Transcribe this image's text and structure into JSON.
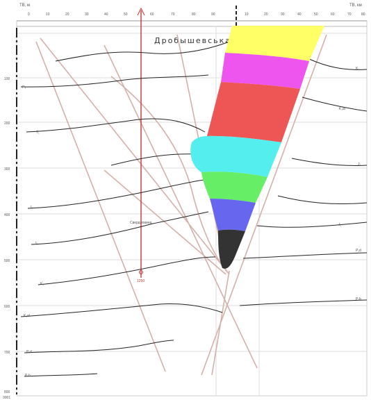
{
  "section": {
    "title": "Дробышевська",
    "axis_units": "ТВ, м",
    "well_label": "Свердловина",
    "well_id": "1250",
    "bottom_axis": "0001"
  },
  "top_scale": {
    "ticks_left": [
      "0",
      "10",
      "20",
      "30",
      "40",
      "50",
      "60",
      "70",
      "80",
      "90"
    ],
    "ticks_right": [
      "10",
      "20",
      "30",
      "40",
      "50",
      "60",
      "70",
      "80"
    ],
    "left_label": "ТВ, м",
    "right_label": "ТВ, км"
  },
  "depth_scale": {
    "ticks": [
      "100",
      "200",
      "300",
      "400",
      "500",
      "600",
      "700",
      "800"
    ]
  },
  "horizon_labels_left": [
    "P₁",
    "T₁",
    "J₁",
    "J₂",
    "K₁",
    "K₁al",
    "P₁d",
    "P₁b"
  ],
  "horizon_labels_right": [
    "K₁",
    "K₁al",
    "J₂",
    "J₁",
    "P₁d",
    "P₁b"
  ],
  "salt_dome": {
    "layers": [
      {
        "name": "layer-yellow",
        "color": "#ffff66"
      },
      {
        "name": "layer-magenta",
        "color": "#ee55ee"
      },
      {
        "name": "layer-red",
        "color": "#ee5555"
      },
      {
        "name": "layer-cyan",
        "color": "#55eeee"
      },
      {
        "name": "layer-green",
        "color": "#66ee66"
      },
      {
        "name": "layer-blue",
        "color": "#6666ee"
      },
      {
        "name": "layer-black",
        "color": "#333333"
      }
    ]
  },
  "colors": {
    "horizon": "#222222",
    "fault": "#d4b0a8",
    "grid": "#dddddd",
    "well": "#cc3333"
  }
}
